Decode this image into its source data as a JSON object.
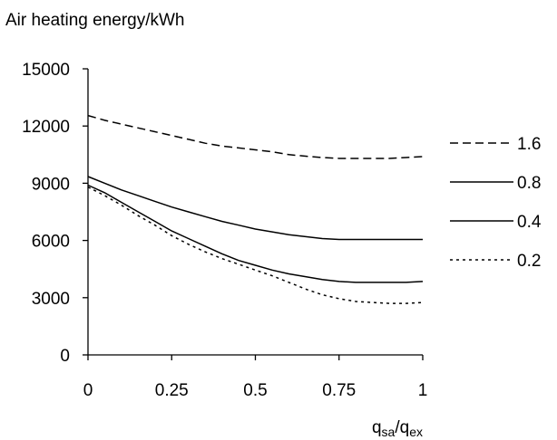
{
  "chart_data": {
    "type": "line",
    "ylabel": "Air heating energy/kWh",
    "xlabel": {
      "main": "q",
      "sub1": "sa",
      "sep": "/q",
      "sub2": "ex"
    },
    "xlim": [
      0,
      1
    ],
    "ylim": [
      0,
      15000
    ],
    "xticks": [
      0,
      0.25,
      0.5,
      0.75,
      1
    ],
    "xtick_labels": [
      "0",
      "0.25",
      "0.5",
      "0.75",
      "1"
    ],
    "yticks": [
      0,
      3000,
      6000,
      9000,
      12000,
      15000
    ],
    "ytick_labels": [
      "0",
      "3000",
      "6000",
      "9000",
      "12000",
      "15000"
    ],
    "grid": false,
    "legend_position": "right",
    "x": [
      0,
      0.05,
      0.1,
      0.15,
      0.2,
      0.25,
      0.3,
      0.35,
      0.4,
      0.45,
      0.5,
      0.55,
      0.6,
      0.65,
      0.7,
      0.75,
      0.8,
      0.85,
      0.9,
      0.95,
      1.0
    ],
    "series": [
      {
        "name": "1.6",
        "style": "dashed",
        "values": [
          12550,
          12300,
          12100,
          11900,
          11700,
          11500,
          11300,
          11100,
          10950,
          10850,
          10750,
          10650,
          10500,
          10420,
          10350,
          10300,
          10300,
          10300,
          10300,
          10350,
          10400
        ]
      },
      {
        "name": "0.8",
        "style": "solid",
        "values": [
          9350,
          9000,
          8650,
          8350,
          8050,
          7750,
          7500,
          7250,
          7000,
          6800,
          6600,
          6450,
          6300,
          6200,
          6100,
          6050,
          6050,
          6050,
          6050,
          6050,
          6050
        ]
      },
      {
        "name": "0.4",
        "style": "solid",
        "values": [
          8900,
          8500,
          8000,
          7500,
          7000,
          6500,
          6100,
          5700,
          5300,
          4950,
          4700,
          4450,
          4250,
          4100,
          3950,
          3850,
          3800,
          3800,
          3800,
          3800,
          3850
        ]
      },
      {
        "name": "0.2",
        "style": "dotted",
        "values": [
          8800,
          8350,
          7850,
          7300,
          6800,
          6250,
          5800,
          5400,
          5050,
          4750,
          4450,
          4150,
          3800,
          3450,
          3150,
          2950,
          2800,
          2750,
          2700,
          2700,
          2750
        ]
      }
    ]
  }
}
